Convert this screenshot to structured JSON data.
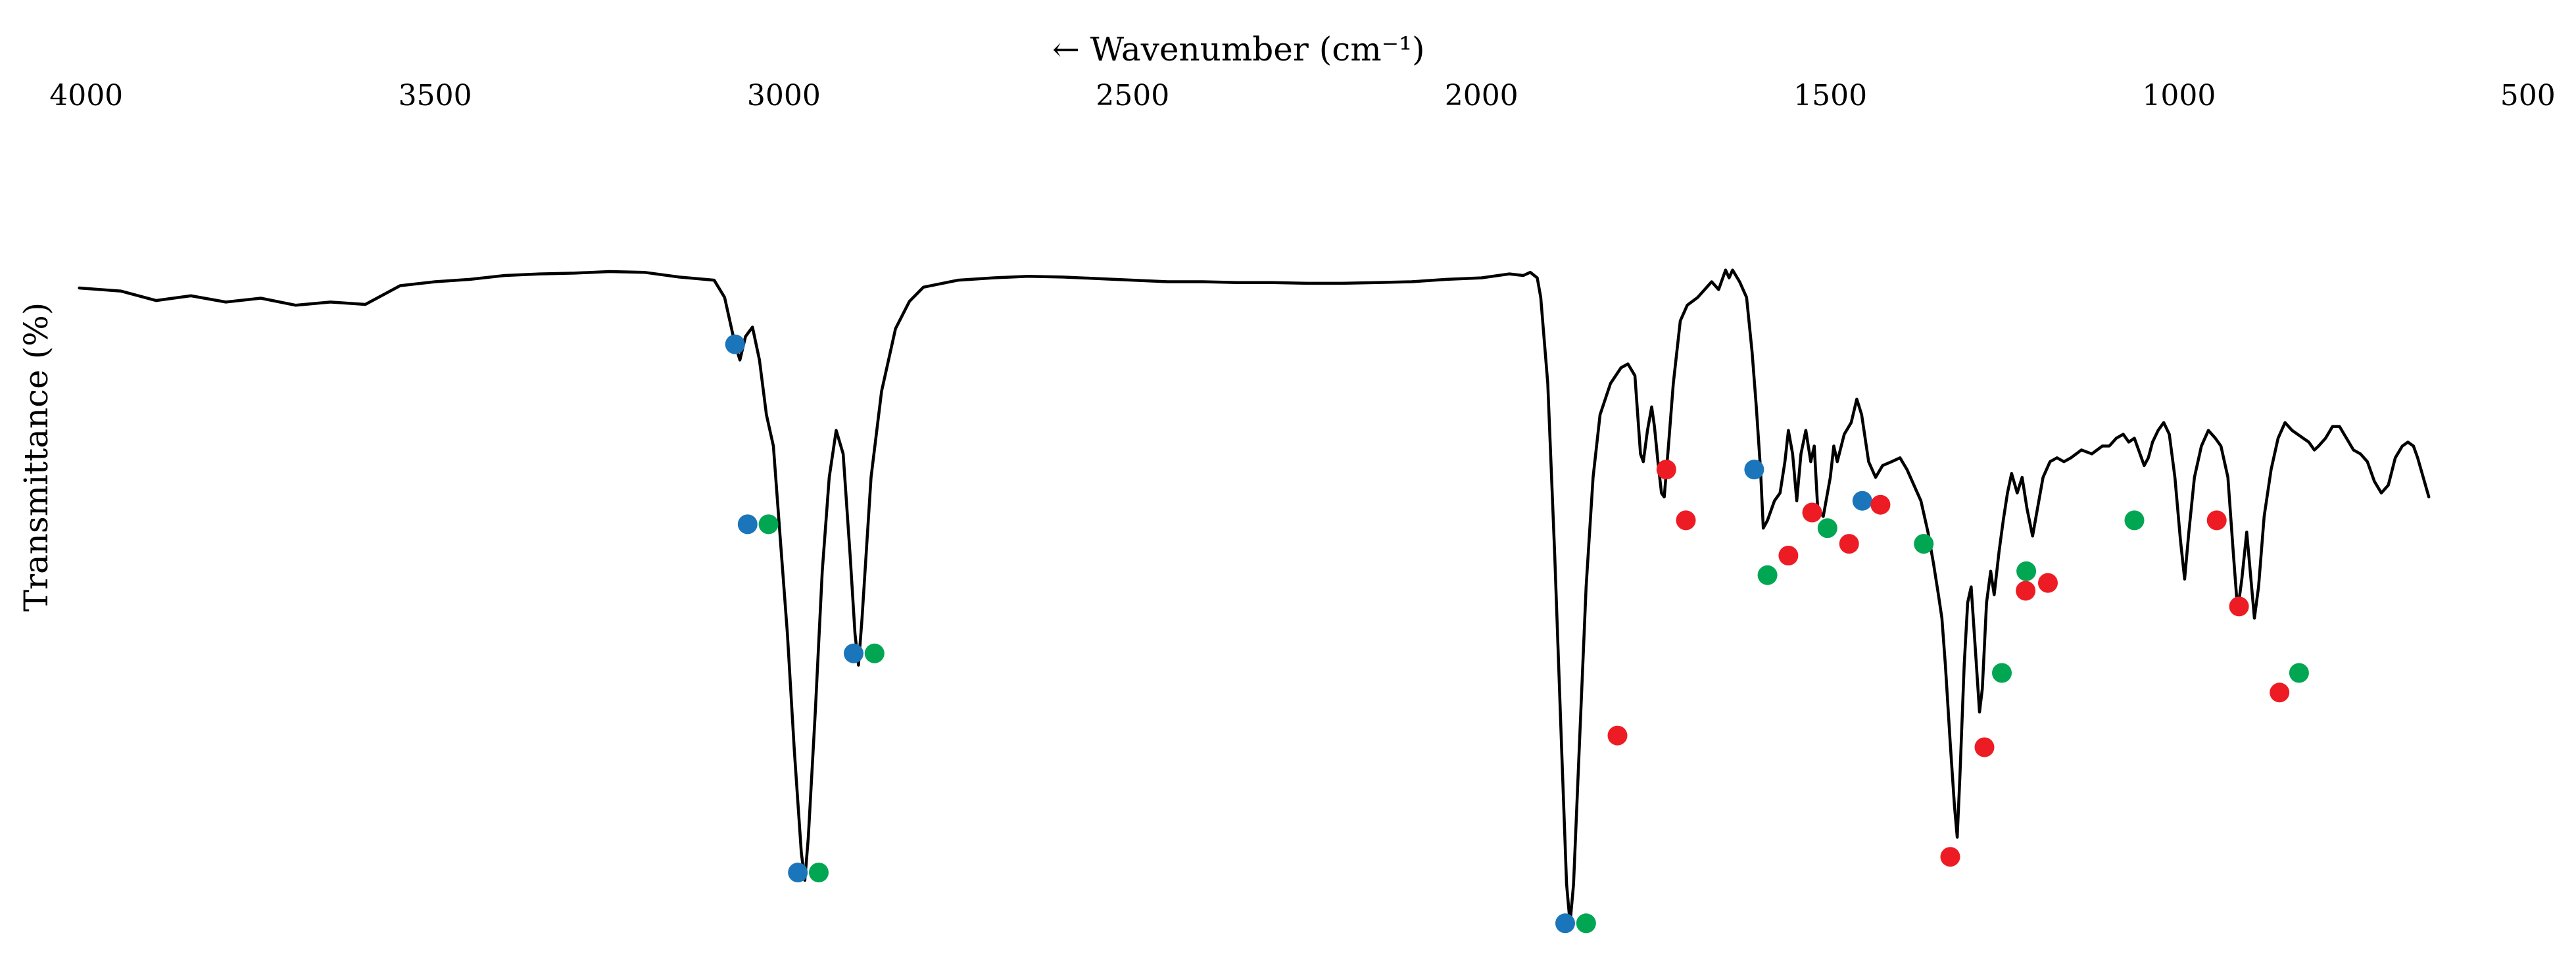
{
  "chart_data": {
    "type": "line",
    "title": "",
    "xlabel": "← Wavenumber (cm⁻¹)",
    "ylabel": "Transmittance (%)",
    "x_reversed": true,
    "xlim": [
      4020,
      480
    ],
    "ylim": [
      0,
      100
    ],
    "x_ticks": [
      4000,
      3500,
      3000,
      2500,
      2000,
      1500,
      1000,
      500
    ],
    "x_tick_labels": [
      "4000",
      "3500",
      "3000",
      "2500",
      "2000",
      "1500",
      "1000",
      "500"
    ],
    "y_ticks_shown": false,
    "grid": false,
    "legend": "none",
    "line_color": "#000000",
    "marker_colors": {
      "blue": "#1b75bb",
      "green": "#00a651",
      "red": "#ed1c24"
    },
    "series": [
      {
        "points": [
          [
            4010,
            84.2
          ],
          [
            3950,
            83.8
          ],
          [
            3900,
            82.6
          ],
          [
            3850,
            83.2
          ],
          [
            3800,
            82.4
          ],
          [
            3750,
            82.9
          ],
          [
            3700,
            82.0
          ],
          [
            3650,
            82.4
          ],
          [
            3600,
            82.1
          ],
          [
            3550,
            84.5
          ],
          [
            3500,
            85.0
          ],
          [
            3450,
            85.3
          ],
          [
            3400,
            85.8
          ],
          [
            3350,
            86.0
          ],
          [
            3300,
            86.1
          ],
          [
            3250,
            86.3
          ],
          [
            3200,
            86.2
          ],
          [
            3150,
            85.6
          ],
          [
            3100,
            85.2
          ],
          [
            3085,
            83.0
          ],
          [
            3070,
            77.0
          ],
          [
            3063,
            75.0
          ],
          [
            3055,
            78.0
          ],
          [
            3045,
            79.2
          ],
          [
            3035,
            75.0
          ],
          [
            3025,
            68.0
          ],
          [
            3015,
            64.0
          ],
          [
            3005,
            52.0
          ],
          [
            2995,
            40.0
          ],
          [
            2985,
            25.0
          ],
          [
            2975,
            12.0
          ],
          [
            2970,
            8.5
          ],
          [
            2965,
            14.0
          ],
          [
            2955,
            30.0
          ],
          [
            2945,
            48.0
          ],
          [
            2935,
            60.0
          ],
          [
            2925,
            66.0
          ],
          [
            2915,
            63.0
          ],
          [
            2905,
            50.0
          ],
          [
            2898,
            40.0
          ],
          [
            2893,
            36.0
          ],
          [
            2888,
            42.0
          ],
          [
            2875,
            60.0
          ],
          [
            2860,
            71.0
          ],
          [
            2840,
            79.0
          ],
          [
            2820,
            82.5
          ],
          [
            2800,
            84.3
          ],
          [
            2750,
            85.2
          ],
          [
            2700,
            85.5
          ],
          [
            2650,
            85.7
          ],
          [
            2600,
            85.6
          ],
          [
            2550,
            85.4
          ],
          [
            2500,
            85.2
          ],
          [
            2450,
            85.0
          ],
          [
            2400,
            85.0
          ],
          [
            2350,
            84.9
          ],
          [
            2300,
            84.9
          ],
          [
            2250,
            84.8
          ],
          [
            2200,
            84.8
          ],
          [
            2150,
            84.9
          ],
          [
            2100,
            85.0
          ],
          [
            2050,
            85.3
          ],
          [
            2000,
            85.5
          ],
          [
            1960,
            86.0
          ],
          [
            1940,
            85.8
          ],
          [
            1930,
            86.2
          ],
          [
            1920,
            85.5
          ],
          [
            1915,
            83.0
          ],
          [
            1905,
            72.0
          ],
          [
            1895,
            50.0
          ],
          [
            1885,
            25.0
          ],
          [
            1878,
            8.0
          ],
          [
            1873,
            3.0
          ],
          [
            1868,
            8.0
          ],
          [
            1860,
            25.0
          ],
          [
            1850,
            46.0
          ],
          [
            1840,
            60.0
          ],
          [
            1830,
            68.0
          ],
          [
            1815,
            72.0
          ],
          [
            1800,
            74.0
          ],
          [
            1790,
            74.5
          ],
          [
            1780,
            73.0
          ],
          [
            1772,
            63.0
          ],
          [
            1768,
            62.0
          ],
          [
            1762,
            66.0
          ],
          [
            1756,
            69.0
          ],
          [
            1752,
            66.5
          ],
          [
            1747,
            62.0
          ],
          [
            1742,
            58.0
          ],
          [
            1738,
            57.5
          ],
          [
            1732,
            64.0
          ],
          [
            1725,
            72.0
          ],
          [
            1715,
            80.0
          ],
          [
            1705,
            82.0
          ],
          [
            1690,
            83.0
          ],
          [
            1670,
            85.0
          ],
          [
            1660,
            84.0
          ],
          [
            1650,
            86.5
          ],
          [
            1645,
            85.5
          ],
          [
            1640,
            86.5
          ],
          [
            1630,
            85.0
          ],
          [
            1620,
            83.0
          ],
          [
            1612,
            76.0
          ],
          [
            1606,
            69.0
          ],
          [
            1600,
            61.0
          ],
          [
            1596,
            53.5
          ],
          [
            1590,
            54.5
          ],
          [
            1580,
            57.0
          ],
          [
            1572,
            58.0
          ],
          [
            1565,
            62.0
          ],
          [
            1560,
            66.0
          ],
          [
            1554,
            63.0
          ],
          [
            1548,
            57.0
          ],
          [
            1542,
            63.0
          ],
          [
            1535,
            66.0
          ],
          [
            1528,
            62.0
          ],
          [
            1523,
            64.0
          ],
          [
            1518,
            56.0
          ],
          [
            1510,
            55.0
          ],
          [
            1500,
            60.0
          ],
          [
            1495,
            64.0
          ],
          [
            1490,
            62.0
          ],
          [
            1480,
            65.5
          ],
          [
            1470,
            67.0
          ],
          [
            1462,
            70.0
          ],
          [
            1455,
            68.0
          ],
          [
            1445,
            62.0
          ],
          [
            1435,
            60.0
          ],
          [
            1425,
            61.5
          ],
          [
            1412,
            62.0
          ],
          [
            1400,
            62.5
          ],
          [
            1390,
            61.0
          ],
          [
            1380,
            59.0
          ],
          [
            1370,
            57.0
          ],
          [
            1360,
            53.0
          ],
          [
            1352,
            49.0
          ],
          [
            1345,
            45.0
          ],
          [
            1340,
            42.0
          ],
          [
            1335,
            36.0
          ],
          [
            1328,
            26.0
          ],
          [
            1322,
            18.0
          ],
          [
            1318,
            14.0
          ],
          [
            1314,
            22.0
          ],
          [
            1308,
            36.0
          ],
          [
            1303,
            44.0
          ],
          [
            1298,
            46.0
          ],
          [
            1292,
            38.0
          ],
          [
            1286,
            30.0
          ],
          [
            1282,
            33.0
          ],
          [
            1276,
            44.0
          ],
          [
            1270,
            48.0
          ],
          [
            1265,
            45.0
          ],
          [
            1258,
            50.5
          ],
          [
            1252,
            54.5
          ],
          [
            1246,
            58.0
          ],
          [
            1240,
            60.5
          ],
          [
            1232,
            58.0
          ],
          [
            1225,
            60.0
          ],
          [
            1218,
            56.0
          ],
          [
            1210,
            52.5
          ],
          [
            1203,
            56.0
          ],
          [
            1195,
            60.0
          ],
          [
            1185,
            62.0
          ],
          [
            1175,
            62.5
          ],
          [
            1165,
            62.0
          ],
          [
            1155,
            62.5
          ],
          [
            1140,
            63.5
          ],
          [
            1125,
            63.0
          ],
          [
            1110,
            64.0
          ],
          [
            1100,
            64.0
          ],
          [
            1090,
            65.0
          ],
          [
            1080,
            65.5
          ],
          [
            1072,
            64.5
          ],
          [
            1064,
            65.0
          ],
          [
            1058,
            63.5
          ],
          [
            1050,
            61.5
          ],
          [
            1044,
            62.5
          ],
          [
            1038,
            64.5
          ],
          [
            1030,
            66.0
          ],
          [
            1022,
            67.0
          ],
          [
            1014,
            65.5
          ],
          [
            1006,
            60.0
          ],
          [
            998,
            52.0
          ],
          [
            992,
            47.0
          ],
          [
            986,
            53.0
          ],
          [
            978,
            60.0
          ],
          [
            968,
            64.0
          ],
          [
            958,
            66.0
          ],
          [
            948,
            65.0
          ],
          [
            940,
            64.0
          ],
          [
            930,
            60.0
          ],
          [
            922,
            50.0
          ],
          [
            916,
            43.0
          ],
          [
            910,
            47.0
          ],
          [
            903,
            53.0
          ],
          [
            897,
            47.0
          ],
          [
            892,
            42.0
          ],
          [
            886,
            46.0
          ],
          [
            878,
            55.0
          ],
          [
            868,
            61.0
          ],
          [
            858,
            65.0
          ],
          [
            848,
            67.0
          ],
          [
            838,
            66.0
          ],
          [
            830,
            65.5
          ],
          [
            822,
            65.0
          ],
          [
            814,
            64.5
          ],
          [
            806,
            63.5
          ],
          [
            800,
            64.0
          ],
          [
            790,
            65.0
          ],
          [
            780,
            66.5
          ],
          [
            770,
            66.5
          ],
          [
            760,
            65.0
          ],
          [
            750,
            63.5
          ],
          [
            740,
            63.0
          ],
          [
            730,
            62.0
          ],
          [
            720,
            59.5
          ],
          [
            710,
            58.0
          ],
          [
            700,
            59.0
          ],
          [
            690,
            62.5
          ],
          [
            680,
            64.0
          ],
          [
            672,
            64.5
          ],
          [
            664,
            64.0
          ],
          [
            658,
            62.5
          ],
          [
            650,
            60.0
          ],
          [
            642,
            57.5
          ]
        ]
      }
    ],
    "markers": [
      {
        "x": 3070,
        "y": 77.0,
        "color": "blue"
      },
      {
        "x": 3052,
        "y": 54.0,
        "color": "blue"
      },
      {
        "x": 3022,
        "y": 54.0,
        "color": "green"
      },
      {
        "x": 2980,
        "y": 9.5,
        "color": "blue"
      },
      {
        "x": 2950,
        "y": 9.5,
        "color": "green"
      },
      {
        "x": 2900,
        "y": 37.5,
        "color": "blue"
      },
      {
        "x": 2870,
        "y": 37.5,
        "color": "green"
      },
      {
        "x": 1880,
        "y": 3.0,
        "color": "blue"
      },
      {
        "x": 1850,
        "y": 3.0,
        "color": "green"
      },
      {
        "x": 1805,
        "y": 27.0,
        "color": "red"
      },
      {
        "x": 1735,
        "y": 61.0,
        "color": "red"
      },
      {
        "x": 1707,
        "y": 54.5,
        "color": "red"
      },
      {
        "x": 1609,
        "y": 61.0,
        "color": "blue"
      },
      {
        "x": 1590,
        "y": 47.5,
        "color": "green"
      },
      {
        "x": 1560,
        "y": 50.0,
        "color": "red"
      },
      {
        "x": 1526,
        "y": 55.5,
        "color": "red"
      },
      {
        "x": 1504,
        "y": 53.5,
        "color": "green"
      },
      {
        "x": 1473,
        "y": 51.5,
        "color": "red"
      },
      {
        "x": 1454,
        "y": 57.0,
        "color": "blue"
      },
      {
        "x": 1428,
        "y": 56.5,
        "color": "red"
      },
      {
        "x": 1366,
        "y": 51.5,
        "color": "green"
      },
      {
        "x": 1328,
        "y": 11.5,
        "color": "red"
      },
      {
        "x": 1279,
        "y": 25.5,
        "color": "red"
      },
      {
        "x": 1254,
        "y": 35.0,
        "color": "green"
      },
      {
        "x": 1219,
        "y": 48.0,
        "color": "green"
      },
      {
        "x": 1220,
        "y": 45.5,
        "color": "red"
      },
      {
        "x": 1188,
        "y": 46.5,
        "color": "red"
      },
      {
        "x": 1064,
        "y": 54.5,
        "color": "green"
      },
      {
        "x": 946,
        "y": 54.5,
        "color": "red"
      },
      {
        "x": 914,
        "y": 43.5,
        "color": "red"
      },
      {
        "x": 856,
        "y": 32.5,
        "color": "red"
      },
      {
        "x": 828,
        "y": 35.0,
        "color": "green"
      }
    ]
  }
}
